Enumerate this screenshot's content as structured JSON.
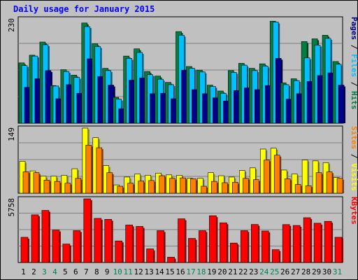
{
  "chart_data": [
    {
      "type": "bar",
      "panel": "hits-files-pages",
      "title": "Daily usage for January 2015",
      "categories": [
        "1",
        "2",
        "3",
        "4",
        "5",
        "6",
        "7",
        "8",
        "9",
        "10",
        "11",
        "12",
        "13",
        "14",
        "15",
        "16",
        "17",
        "18",
        "19",
        "20",
        "21",
        "22",
        "23",
        "24",
        "25",
        "26",
        "27",
        "28",
        "29",
        "30",
        "31"
      ],
      "weekend_categories": [
        "3",
        "4",
        "10",
        "11",
        "17",
        "18",
        "24",
        "25",
        "31"
      ],
      "ylabel": "Pages / Files / Hits",
      "ymax_label": "230",
      "ylim": [
        0,
        230
      ],
      "grid": true,
      "series": [
        {
          "name": "Hits",
          "color": "#008040",
          "values": [
            133,
            150,
            179,
            83,
            118,
            106,
            221,
            175,
            121,
            57,
            148,
            164,
            114,
            104,
            90,
            202,
            125,
            117,
            84,
            71,
            116,
            132,
            121,
            131,
            225,
            89,
            98,
            180,
            186,
            194,
            136
          ]
        },
        {
          "name": "Files",
          "color": "#00C0FF",
          "values": [
            127,
            148,
            173,
            82,
            114,
            101,
            213,
            169,
            116,
            53,
            143,
            156,
            107,
            97,
            85,
            194,
            121,
            113,
            81,
            66,
            112,
            128,
            116,
            126,
            223,
            85,
            94,
            144,
            172,
            187,
            130
          ]
        },
        {
          "name": "Pages",
          "color": "#00008A",
          "values": [
            79,
            98,
            116,
            54,
            85,
            66,
            142,
            103,
            84,
            32,
            95,
            100,
            65,
            66,
            54,
            117,
            74,
            65,
            56,
            49,
            72,
            78,
            74,
            83,
            143,
            53,
            65,
            92,
            105,
            111,
            84
          ]
        }
      ]
    },
    {
      "type": "bar",
      "panel": "visits-sites",
      "categories": [
        "1",
        "2",
        "3",
        "4",
        "5",
        "6",
        "7",
        "8",
        "9",
        "10",
        "11",
        "12",
        "13",
        "14",
        "15",
        "16",
        "17",
        "18",
        "19",
        "20",
        "21",
        "22",
        "23",
        "24",
        "25",
        "26",
        "27",
        "28",
        "29",
        "30",
        "31"
      ],
      "ylabel": "Sites / Visits",
      "ymax_label": "149",
      "ylim": [
        0,
        149
      ],
      "grid": true,
      "series": [
        {
          "name": "Visits",
          "color": "#FFFF00",
          "values": [
            73,
            51,
            39,
            39,
            41,
            56,
            149,
            127,
            63,
            19,
            37,
            44,
            41,
            46,
            42,
            41,
            34,
            34,
            47,
            40,
            37,
            52,
            58,
            101,
            103,
            53,
            44,
            76,
            74,
            70,
            36
          ]
        },
        {
          "name": "Sites",
          "color": "#FF8000",
          "values": [
            49,
            47,
            30,
            27,
            23,
            34,
            110,
            104,
            47,
            16,
            23,
            28,
            29,
            40,
            34,
            35,
            33,
            16,
            27,
            24,
            25,
            34,
            31,
            76,
            87,
            33,
            20,
            17,
            47,
            49,
            34
          ]
        }
      ]
    },
    {
      "type": "bar",
      "panel": "kbytes",
      "categories": [
        "1",
        "2",
        "3",
        "4",
        "5",
        "6",
        "7",
        "8",
        "9",
        "10",
        "11",
        "12",
        "13",
        "14",
        "15",
        "16",
        "17",
        "18",
        "19",
        "20",
        "21",
        "22",
        "23",
        "24",
        "25",
        "26",
        "27",
        "28",
        "29",
        "30",
        "31"
      ],
      "ylabel": "KBytes",
      "ymax_label": "5758",
      "ylim": [
        0,
        5758
      ],
      "grid": true,
      "series": [
        {
          "name": "KBytes",
          "color": "#FF0000",
          "values": [
            2280,
            4310,
            4710,
            2930,
            1670,
            2880,
            5758,
            3990,
            3900,
            1950,
            3390,
            3260,
            1230,
            2880,
            480,
            3950,
            2180,
            2880,
            4230,
            3590,
            1760,
            2880,
            3440,
            2850,
            1160,
            3430,
            3350,
            4050,
            3550,
            3720,
            2280
          ]
        }
      ]
    }
  ]
}
